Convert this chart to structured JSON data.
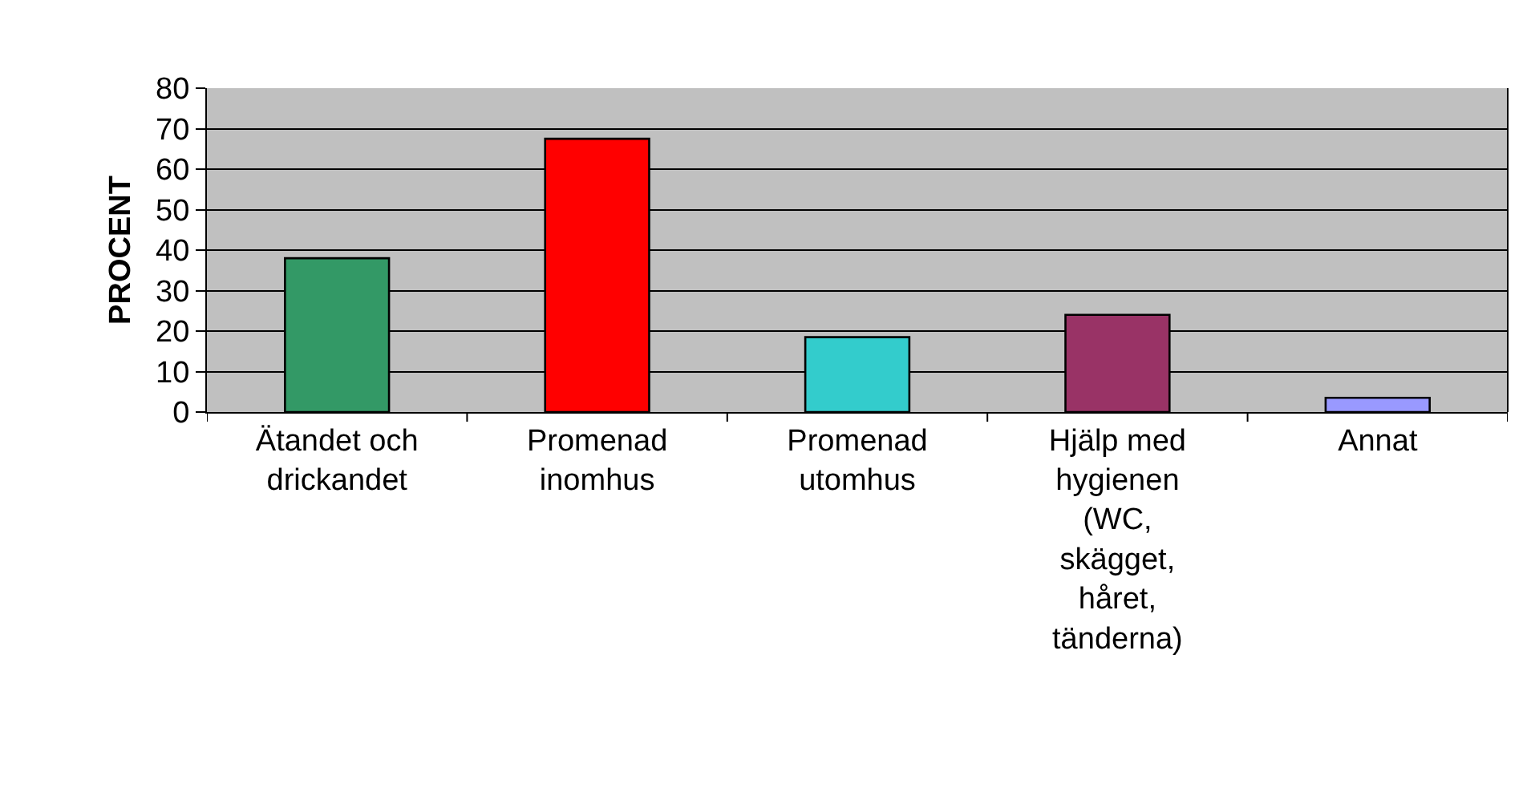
{
  "chart_data": {
    "type": "bar",
    "ylabel": "PROCENT",
    "categories": [
      "Ätandet och\ndrickandet",
      "Promenad\ninomhus",
      "Promenad\nutomhus",
      "Hjälp med\nhygienen\n(WC,\nskägget,\nhåret,\ntänderna)",
      "Annat"
    ],
    "values": [
      38,
      67.5,
      18.5,
      24,
      3.5
    ],
    "colors": [
      "#339966",
      "#ff0000",
      "#33cccc",
      "#993366",
      "#9999ff"
    ],
    "ylim": [
      0,
      80
    ],
    "yticks": [
      0,
      10,
      20,
      30,
      40,
      50,
      60,
      70,
      80
    ],
    "grid": "y"
  }
}
